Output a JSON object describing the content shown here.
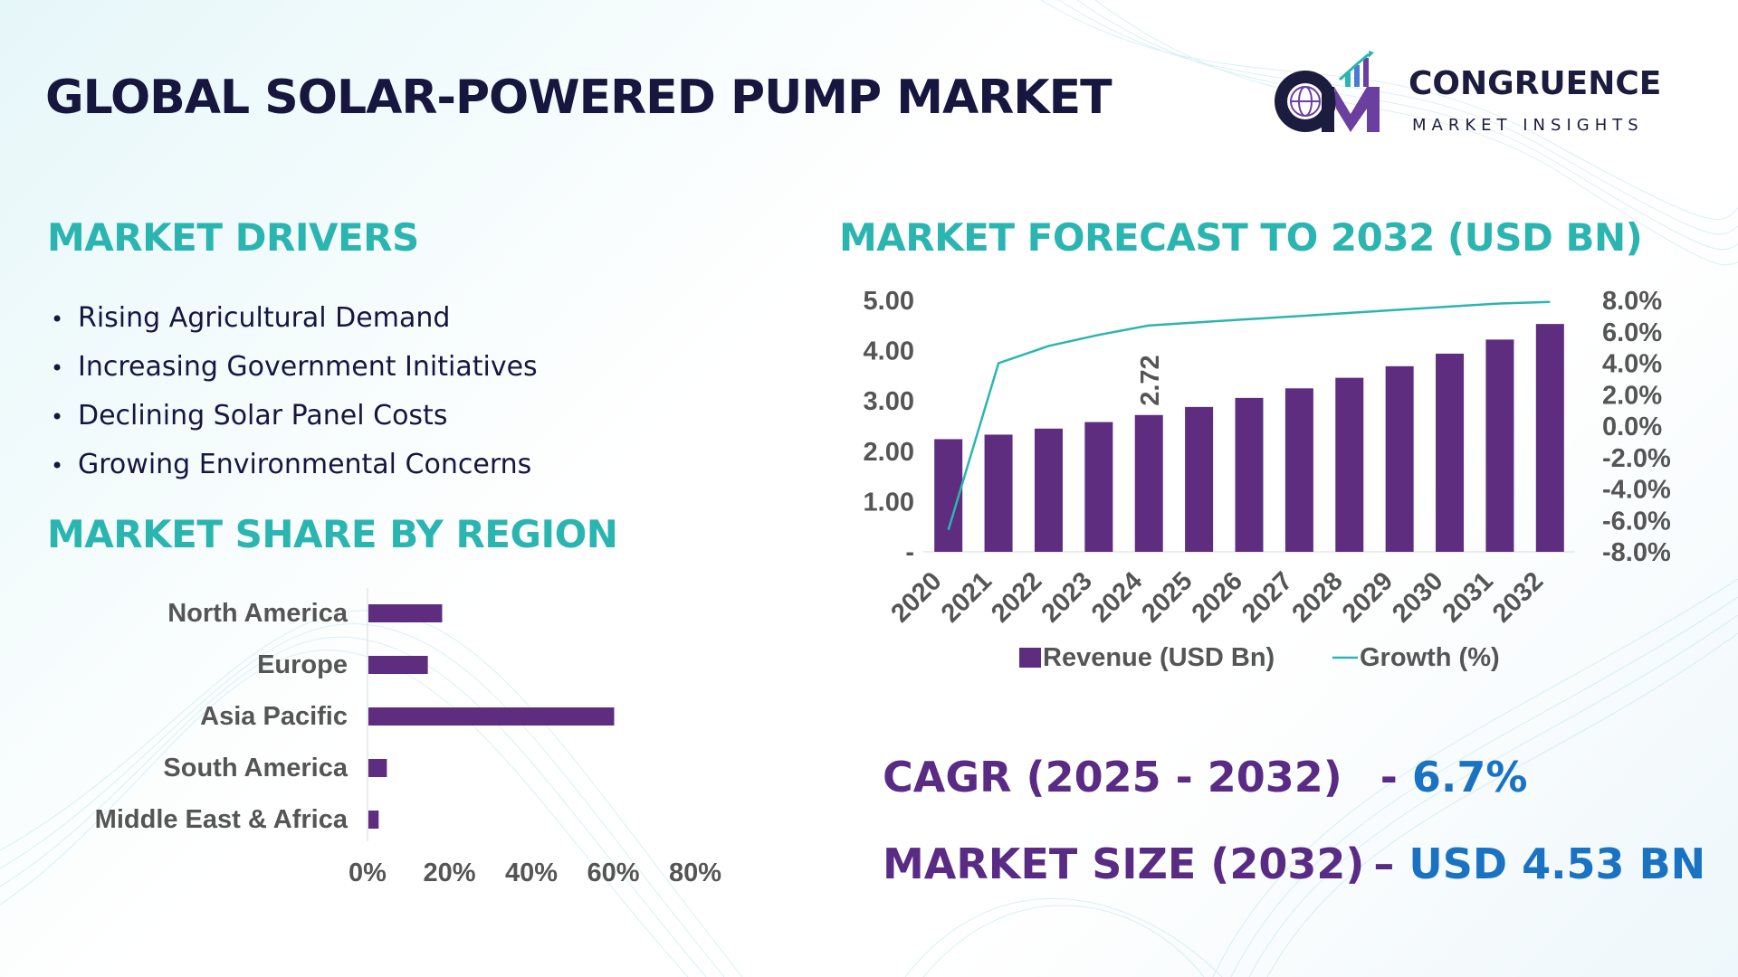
{
  "title": "GLOBAL SOLAR-POWERED PUMP MARKET",
  "logo": {
    "icon": "cm-globe-chart-logo-icon",
    "name": "CONGRUENCE",
    "subtitle": "MARKET INSIGHTS"
  },
  "drivers": {
    "title": "MARKET DRIVERS",
    "items": [
      "Rising Agricultural Demand",
      "Increasing Government Initiatives",
      "Declining Solar Panel Costs",
      "Growing Environmental Concerns"
    ]
  },
  "region": {
    "title": "MARKET SHARE BY REGION"
  },
  "forecast": {
    "title": "MARKET FORECAST TO 2032 (USD BN)"
  },
  "stats": {
    "cagr_label": "CAGR (2025 - 2032)",
    "cagr_sep": "- ",
    "cagr_value": "6.7%",
    "size_label": "MARKET SIZE (2032)",
    "size_sep": "– ",
    "size_value": "USD 4.53 BN"
  },
  "colors": {
    "bar": "#5e2d80",
    "line": "#2bb5b0",
    "heading": "#2bb5b0",
    "dark": "#16163f",
    "stat_label": "#5a2b84",
    "stat_value": "#1a73c2"
  },
  "chart_data": [
    {
      "type": "bar",
      "orientation": "horizontal",
      "title": "MARKET SHARE BY REGION",
      "categories": [
        "North America",
        "Europe",
        "Asia Pacific",
        "South America",
        "Middle East & Africa"
      ],
      "values": [
        18,
        14.5,
        60,
        4.5,
        2.5
      ],
      "unit": "%",
      "xlim": [
        0,
        80
      ],
      "x_ticks": [
        "0%",
        "20%",
        "40%",
        "60%",
        "80%"
      ],
      "grid": false,
      "legend": "none"
    },
    {
      "type": "bar",
      "title": "MARKET FORECAST TO 2032 (USD BN)",
      "categories": [
        "2020",
        "2021",
        "2022",
        "2023",
        "2024",
        "2025",
        "2026",
        "2027",
        "2028",
        "2029",
        "2030",
        "2031",
        "2032"
      ],
      "series": [
        {
          "name": "Revenue (USD Bn)",
          "type": "bar",
          "axis": "left",
          "values": [
            2.24,
            2.33,
            2.45,
            2.58,
            2.72,
            2.88,
            3.06,
            3.25,
            3.46,
            3.69,
            3.94,
            4.22,
            4.53
          ]
        },
        {
          "name": "Growth (%)",
          "type": "line",
          "axis": "right",
          "values": [
            -6.6,
            4.0,
            5.1,
            5.8,
            6.4,
            6.6,
            6.8,
            7.0,
            7.2,
            7.4,
            7.6,
            7.8,
            7.9
          ]
        }
      ],
      "data_labels": [
        {
          "category": "2024",
          "series": "Revenue (USD Bn)",
          "text": "2.72"
        }
      ],
      "y_left": {
        "min": 0,
        "max": 5,
        "ticks": [
          "-",
          "1.00",
          "2.00",
          "3.00",
          "4.00",
          "5.00"
        ]
      },
      "y_right": {
        "min": -8,
        "max": 8,
        "ticks": [
          "-8.0%",
          "-6.0%",
          "-4.0%",
          "-2.0%",
          "0.0%",
          "2.0%",
          "4.0%",
          "6.0%",
          "8.0%"
        ]
      },
      "grid": false,
      "legend": "bottom"
    }
  ]
}
